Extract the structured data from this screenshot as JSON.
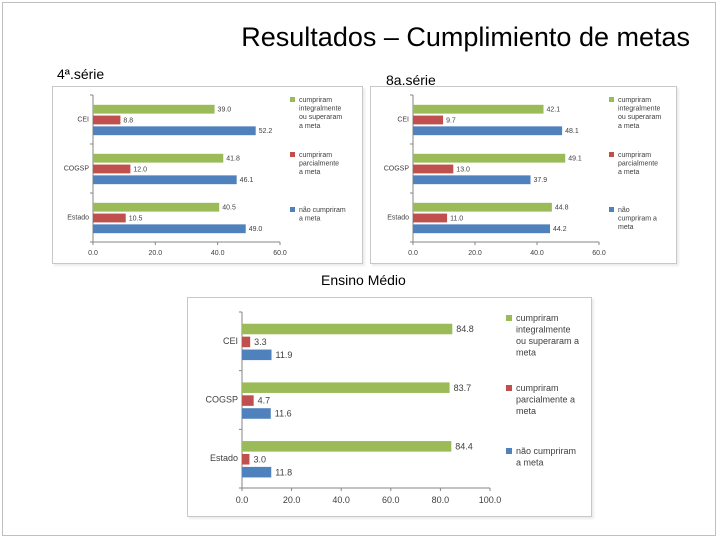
{
  "slide": {
    "title": "Resultados – Cumplimiento de metas",
    "label_4serie": "4ª.série",
    "label_8serie": "8a.série",
    "label_medio": "Ensino Médio"
  },
  "colors": {
    "green": "#9bbb59",
    "red": "#c0504d",
    "blue": "#4f81bd"
  },
  "chart_data": [
    {
      "type": "bar",
      "orientation": "horizontal",
      "categories": [
        "CEI",
        "COGSP",
        "Estado"
      ],
      "series": [
        {
          "name": "cumpriram integralmente ou superaram a meta",
          "values": [
            39.0,
            41.8,
            40.5
          ]
        },
        {
          "name": "cumpriram parcialmente a meta",
          "values": [
            8.8,
            12.0,
            10.5
          ]
        },
        {
          "name": "não cumpriram a meta",
          "values": [
            52.2,
            46.1,
            49.0
          ]
        }
      ],
      "value_labels": [
        [
          "39.0",
          "41.8",
          "40.5"
        ],
        [
          "8.8",
          "12.0",
          "10.5"
        ],
        [
          "52.2",
          "46.1",
          "49.0"
        ]
      ],
      "xlim": [
        0,
        60
      ],
      "xticks": [
        "0.0",
        "20.0",
        "40.0",
        "60.0"
      ],
      "legend": "right"
    },
    {
      "type": "bar",
      "orientation": "horizontal",
      "categories": [
        "CEI",
        "COGSP",
        "Estado"
      ],
      "series": [
        {
          "name": "cumpriram integralmente ou superaram a meta",
          "values": [
            42.1,
            49.1,
            44.8
          ]
        },
        {
          "name": "cumpriram parcialmente a meta",
          "values": [
            9.7,
            13.0,
            11.0
          ]
        },
        {
          "name": "não cumpriram a meta",
          "values": [
            48.1,
            37.9,
            44.2
          ]
        }
      ],
      "value_labels": [
        [
          "42.1",
          "49.1",
          "44.8"
        ],
        [
          "9.7",
          "13.0",
          "11.0"
        ],
        [
          "48.1",
          "37.9",
          "44.2"
        ]
      ],
      "xlim": [
        0,
        60
      ],
      "xticks": [
        "0.0",
        "20.0",
        "40.0",
        "60.0"
      ],
      "legend": "right"
    },
    {
      "type": "bar",
      "orientation": "horizontal",
      "categories": [
        "CEI",
        "COGSP",
        "Estado"
      ],
      "series": [
        {
          "name": "cumpriram integralmente ou superaram a meta",
          "values": [
            84.8,
            83.7,
            84.4
          ]
        },
        {
          "name": "cumpriram parcialmente a meta",
          "values": [
            3.3,
            4.7,
            3.0
          ]
        },
        {
          "name": "não cumpriram a meta",
          "values": [
            11.9,
            11.6,
            11.8
          ]
        }
      ],
      "value_labels": [
        [
          "84.8",
          "83.7",
          "84.4"
        ],
        [
          "3.3",
          "4.7",
          "3.0"
        ],
        [
          "11.9",
          "11.6",
          "11.8"
        ]
      ],
      "xlim": [
        0,
        100
      ],
      "xticks": [
        "0.0",
        "20.0",
        "40.0",
        "60.0",
        "80.0",
        "100.0"
      ],
      "legend": "right"
    }
  ]
}
